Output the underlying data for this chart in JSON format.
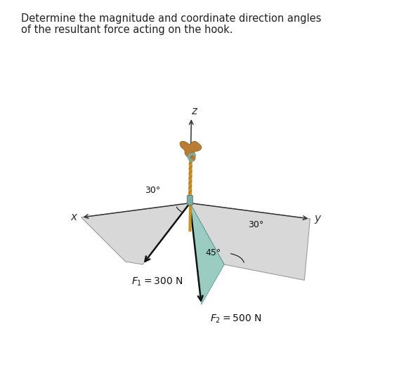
{
  "title_line1": "Determine the magnitude and coordinate direction angles",
  "title_line2": "of the resultant force acting on the hook.",
  "title_fontsize": 10.5,
  "bg_color": "#ffffff",
  "gray_fill": "#d4d4d4",
  "teal_fill": "#89c4b8",
  "rope_tan": "#c8922a",
  "rope_dark": "#8B6010",
  "hook_green": "#7aada3",
  "arrow_color": "#111111",
  "axis_color": "#333333",
  "f1_label": "$F_1 = 300$ N",
  "f2_label": "$F_2 = 500$ N",
  "angle1_label": "30°",
  "angle2_label": "30°",
  "angle3_label": "45°",
  "x_label": "x",
  "y_label": "y",
  "z_label": "z",
  "ox": 0.415,
  "oy": 0.445,
  "figw": 5.95,
  "figh": 5.29,
  "dpi": 100
}
